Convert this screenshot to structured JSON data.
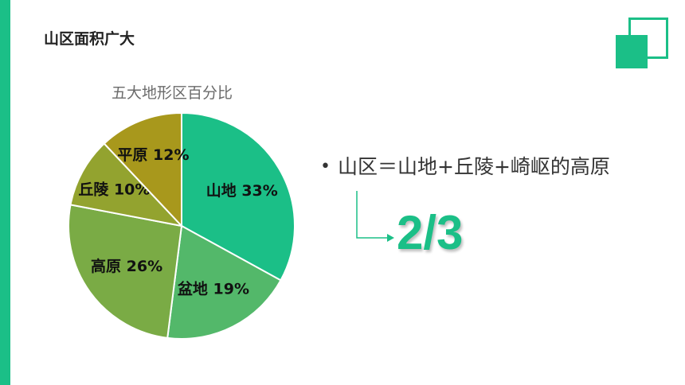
{
  "slide": {
    "title": "山区面积广大"
  },
  "bullet": {
    "text": "山区＝山地+丘陵+崎岖的高原"
  },
  "fraction": "2/3",
  "colors": {
    "accent": "#1bbf87"
  },
  "chart_data": {
    "type": "pie",
    "title": "五大地形区百分比",
    "slices": [
      {
        "label": "山地",
        "value": 33,
        "display": "山地 33%",
        "color": "#1bbf87"
      },
      {
        "label": "盆地",
        "value": 19,
        "display": "盆地 19%",
        "color": "#53b86a"
      },
      {
        "label": "高原",
        "value": 26,
        "display": "高原 26%",
        "color": "#7aab45"
      },
      {
        "label": "丘陵",
        "value": 10,
        "display": "丘陵 10%",
        "color": "#93a32f"
      },
      {
        "label": "平原",
        "value": 12,
        "display": "平原 12%",
        "color": "#a8981c"
      }
    ]
  }
}
